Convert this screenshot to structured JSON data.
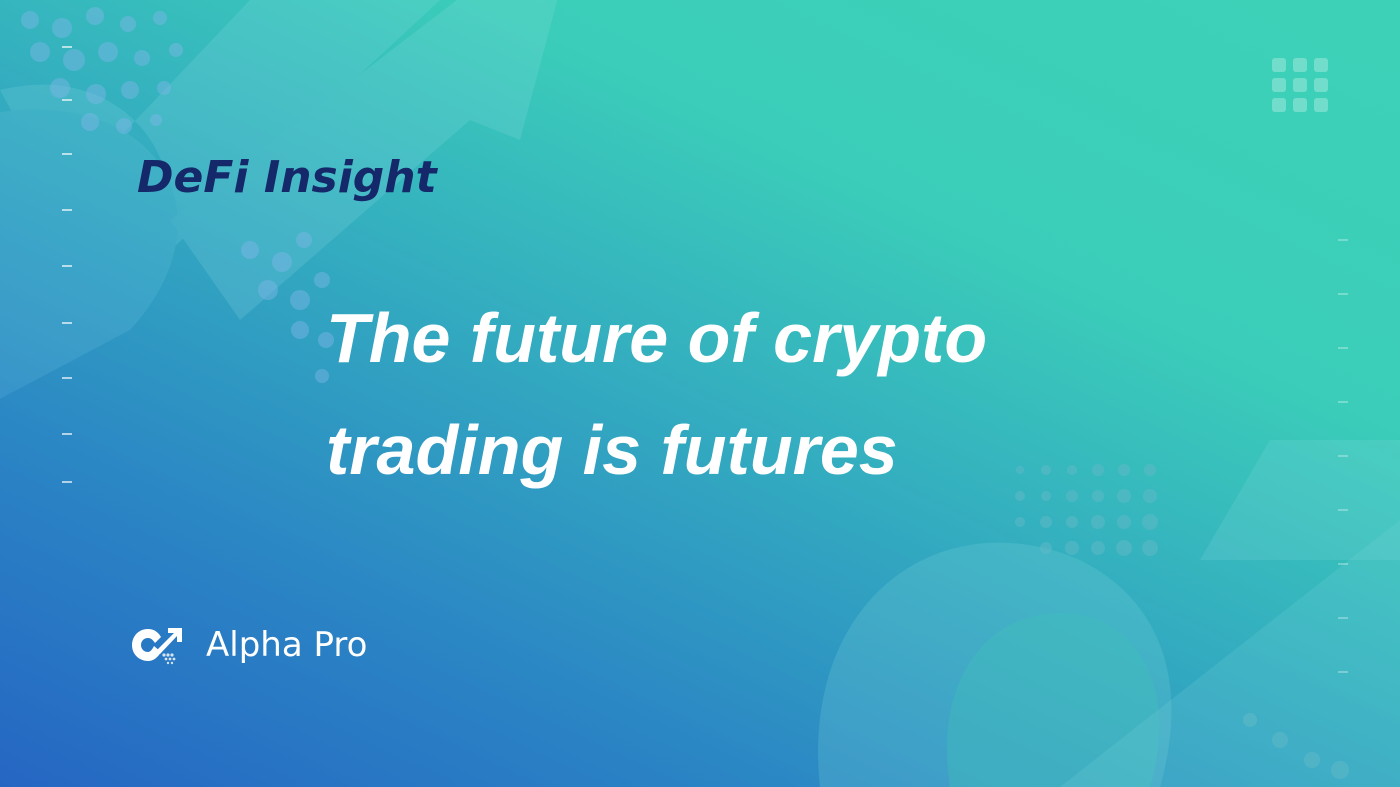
{
  "kicker": "DeFi Insight",
  "headline": {
    "line1": "The future of crypto",
    "line2": "trading is futures"
  },
  "brand": {
    "name": "Alpha Pro",
    "logo_icon": "alpha-pro-logo-icon"
  },
  "colors": {
    "gradient_top_right": "#3dd2b8",
    "gradient_bottom_left": "#2566c3",
    "kicker_text": "#14286a",
    "headline_text": "#ffffff",
    "brand_text": "#ffffff"
  },
  "decorations": {
    "left_edge_ticks": 9,
    "right_edge_ticks": 9,
    "top_right_dot_grid": "3x3"
  }
}
